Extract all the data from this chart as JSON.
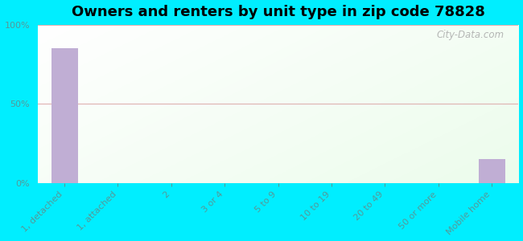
{
  "title": "Owners and renters by unit type in zip code 78828",
  "categories": [
    "1, detached",
    "1, attached",
    "2",
    "3 or 4",
    "5 to 9",
    "10 to 19",
    "20 to 49",
    "50 or more",
    "Mobile home"
  ],
  "values": [
    85,
    0,
    0,
    0,
    0,
    0,
    0,
    0,
    15
  ],
  "bar_color": "#c0aed4",
  "background_outer": "#00eeff",
  "background_inner_topleft": "#f5fff5",
  "background_inner_topright": "#c8f0e0",
  "background_inner_bottom": "#e8ffe8",
  "ylim": [
    0,
    100
  ],
  "yticks": [
    0,
    50,
    100
  ],
  "ytick_labels": [
    "0%",
    "50%",
    "100%"
  ],
  "title_fontsize": 13,
  "tick_fontsize": 8,
  "tick_color": "#559999",
  "grid_color": "#ddaaaa",
  "watermark": "City-Data.com"
}
